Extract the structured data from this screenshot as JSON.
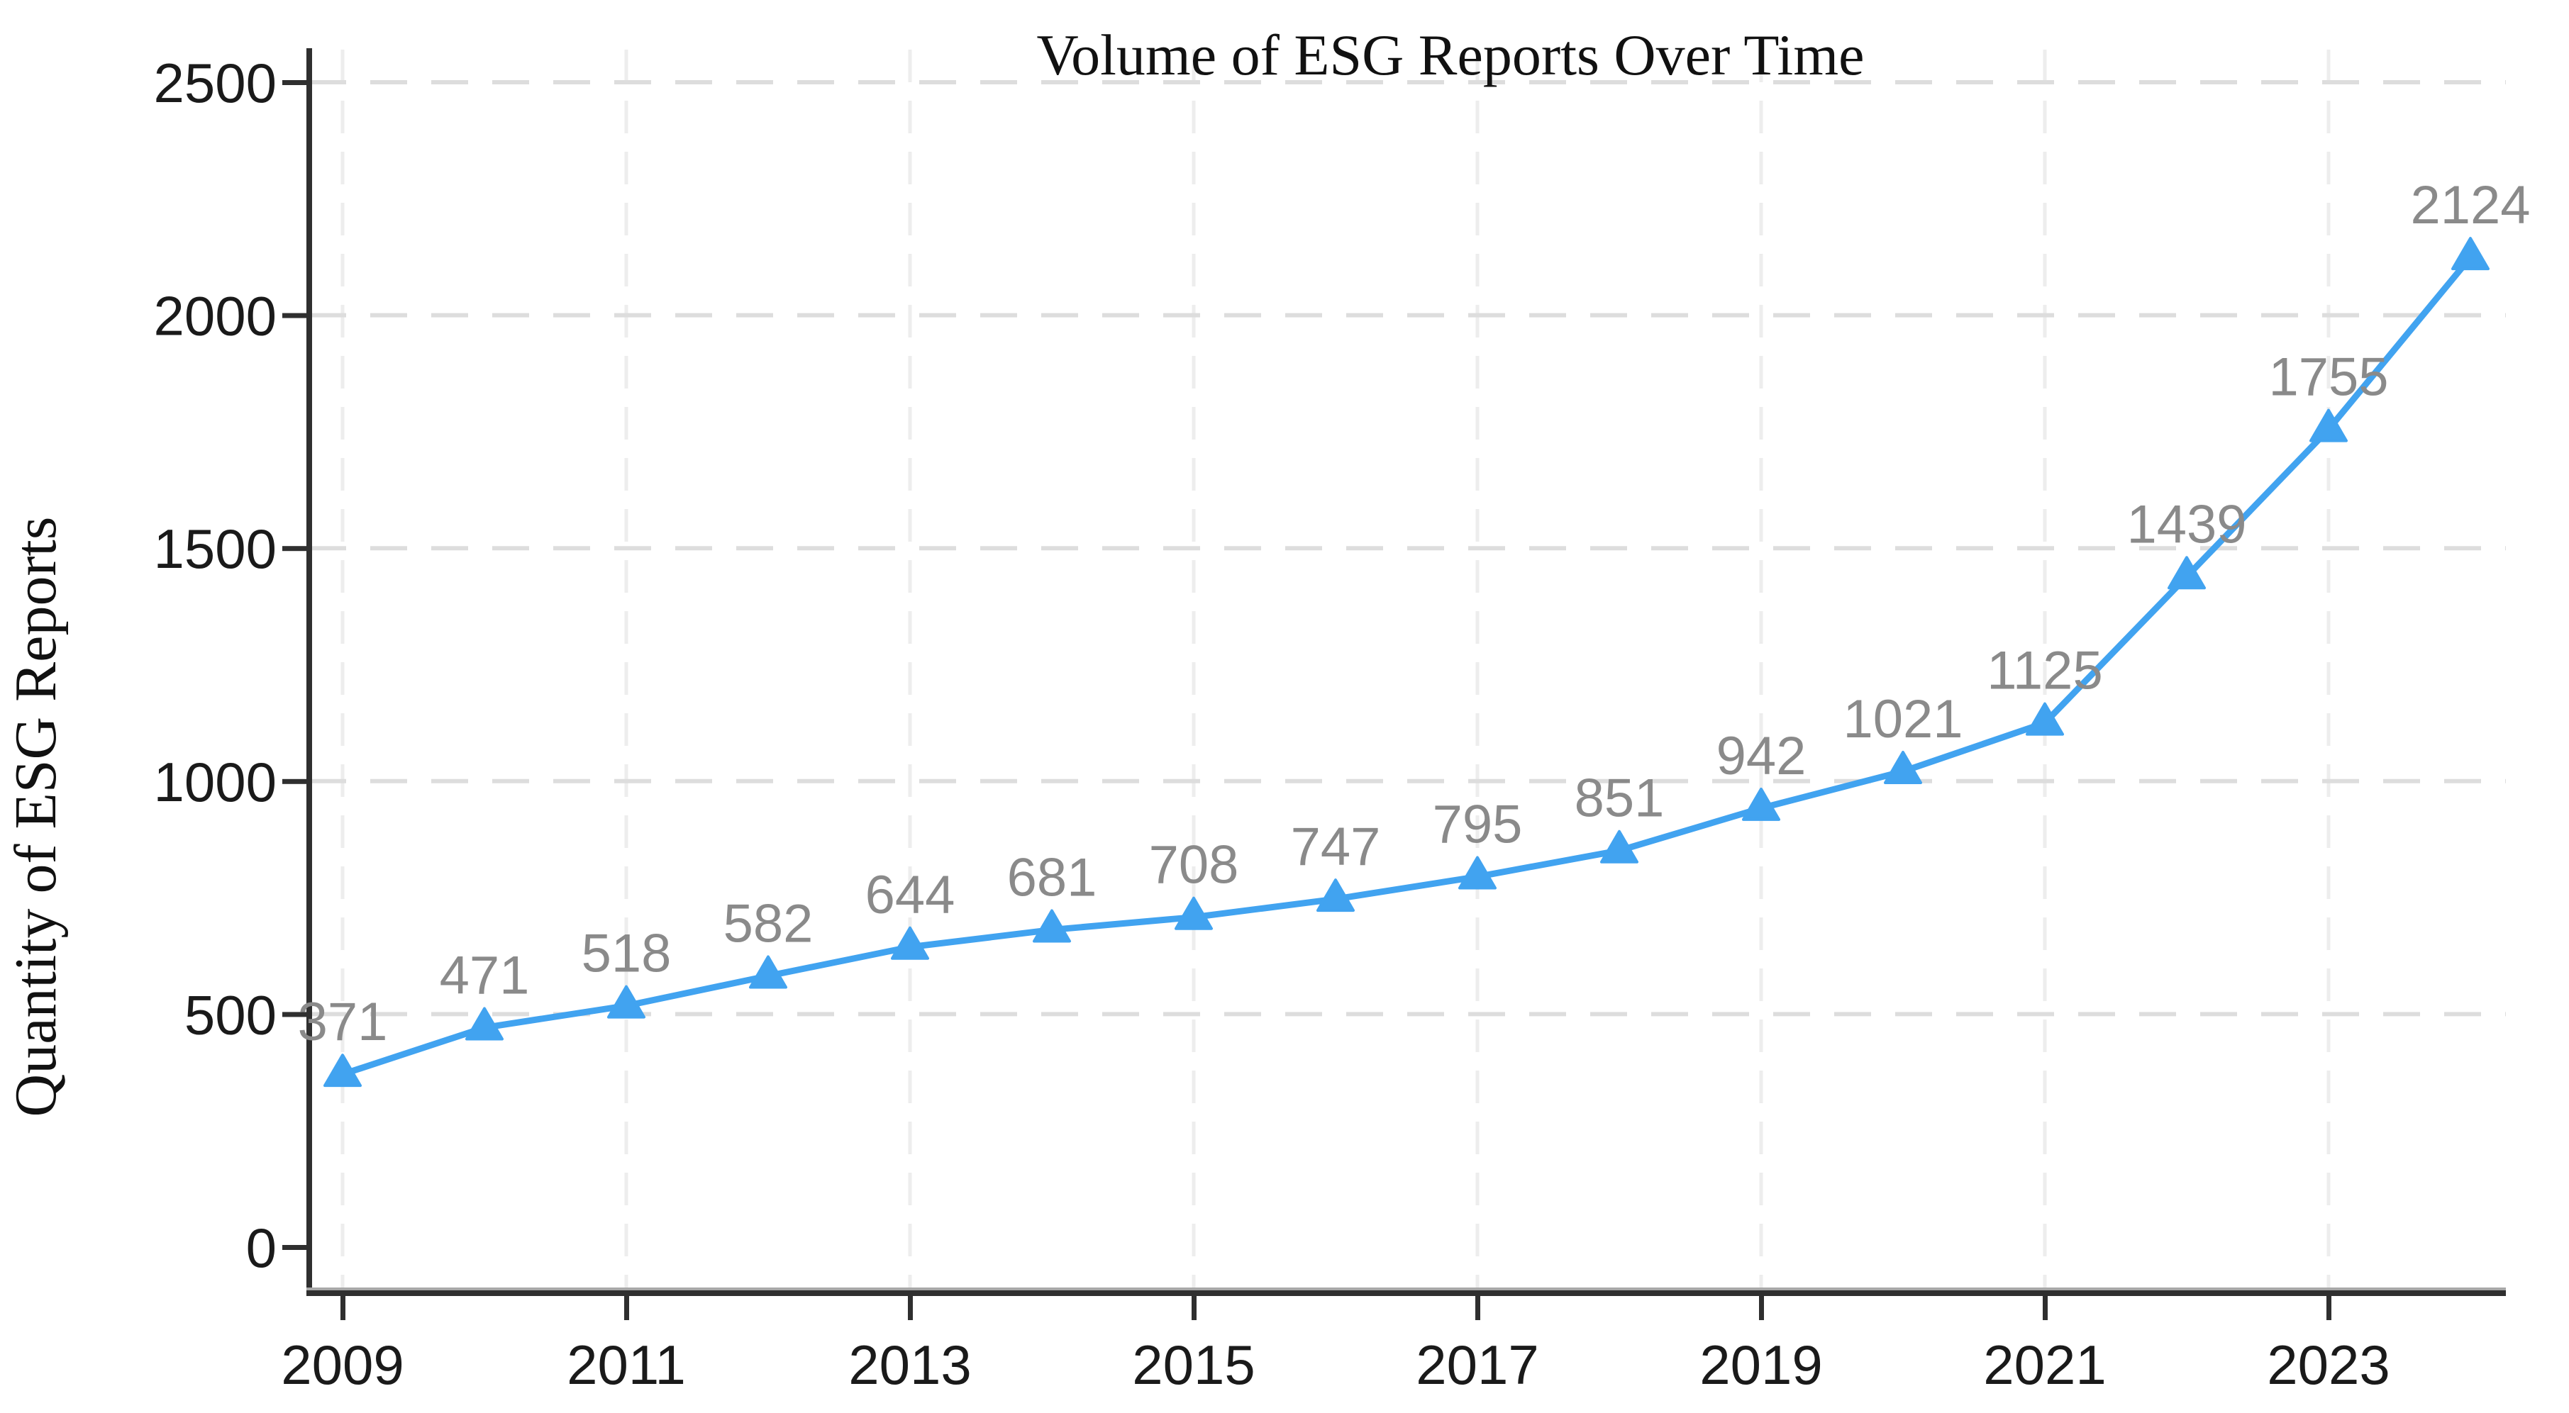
{
  "chart_data": {
    "type": "line",
    "title": "Volume of ESG Reports Over Time",
    "xlabel": "",
    "ylabel": "Quantity of ESG Reports",
    "x": [
      2009,
      2010,
      2011,
      2012,
      2013,
      2014,
      2015,
      2016,
      2017,
      2018,
      2019,
      2020,
      2021,
      2022,
      2023,
      2024
    ],
    "series": [
      {
        "name": "ESG Reports",
        "values": [
          371,
          471,
          518,
          582,
          644,
          681,
          708,
          747,
          795,
          851,
          942,
          1021,
          1125,
          1439,
          1755,
          2124
        ]
      }
    ],
    "data_labels_visible": true,
    "x_tick_labels": [
      "2009",
      "2011",
      "2013",
      "2015",
      "2017",
      "2019",
      "2021",
      "2023"
    ],
    "x_tick_years": [
      2009,
      2011,
      2013,
      2015,
      2017,
      2019,
      2021,
      2023
    ],
    "y_ticks": [
      0,
      500,
      1000,
      1500,
      2000,
      2500
    ],
    "y_tick_labels": [
      "0",
      "500",
      "1000",
      "1500",
      "2000",
      "2500"
    ],
    "ylim": [
      0,
      2500
    ],
    "xlim": [
      2009,
      2024.25
    ],
    "grid": "dashed light-gray horizontal and vertical gridlines at axis ticks",
    "legend": "none",
    "marker": "triangle-up",
    "colors": {
      "line": "#41a3f0",
      "marker": "#41a3f0",
      "data_label": "#8a8a8a",
      "tick_label": "#1a1a1a",
      "title": "#111111",
      "axis_line": "#2f2f2f",
      "axis_line_highlight": "#a8a8a8",
      "grid_horizontal": "#dddddd",
      "grid_vertical": "#ededed",
      "background": "#ffffff"
    }
  }
}
